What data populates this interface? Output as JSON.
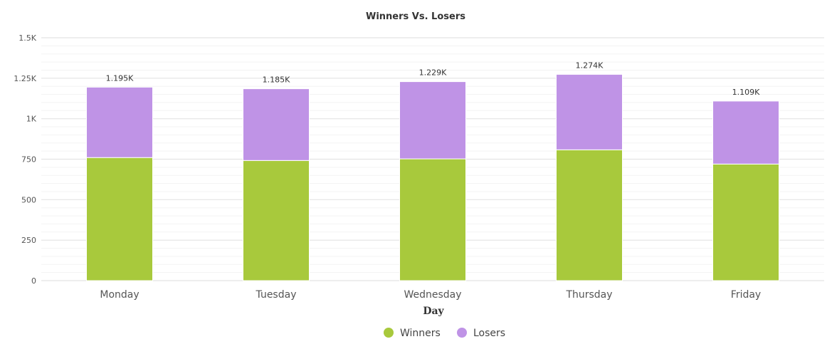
{
  "chart_data": {
    "type": "bar",
    "stacked": true,
    "title": "Winners Vs. Losers",
    "xlabel": "Day",
    "ylabel": "",
    "categories": [
      "Monday",
      "Tuesday",
      "Wednesday",
      "Thursday",
      "Friday"
    ],
    "series": [
      {
        "name": "Winners",
        "color": "#a8c93c",
        "values": [
          760,
          742,
          752,
          808,
          720
        ]
      },
      {
        "name": "Losers",
        "color": "#bf93e6",
        "values": [
          435,
          443,
          477,
          466,
          389
        ]
      }
    ],
    "totals": [
      1195,
      1185,
      1229,
      1274,
      1109
    ],
    "total_labels": [
      "1.195K",
      "1.185K",
      "1.229K",
      "1.274K",
      "1.109K"
    ],
    "ylim": [
      0,
      1500
    ],
    "yticks": [
      0,
      250,
      500,
      750,
      1000,
      1250,
      1500
    ],
    "ytick_labels": [
      "0",
      "250",
      "500",
      "750",
      "1K",
      "1.25K",
      "1.5K"
    ],
    "grid": true,
    "legend_position": "bottom-center"
  }
}
